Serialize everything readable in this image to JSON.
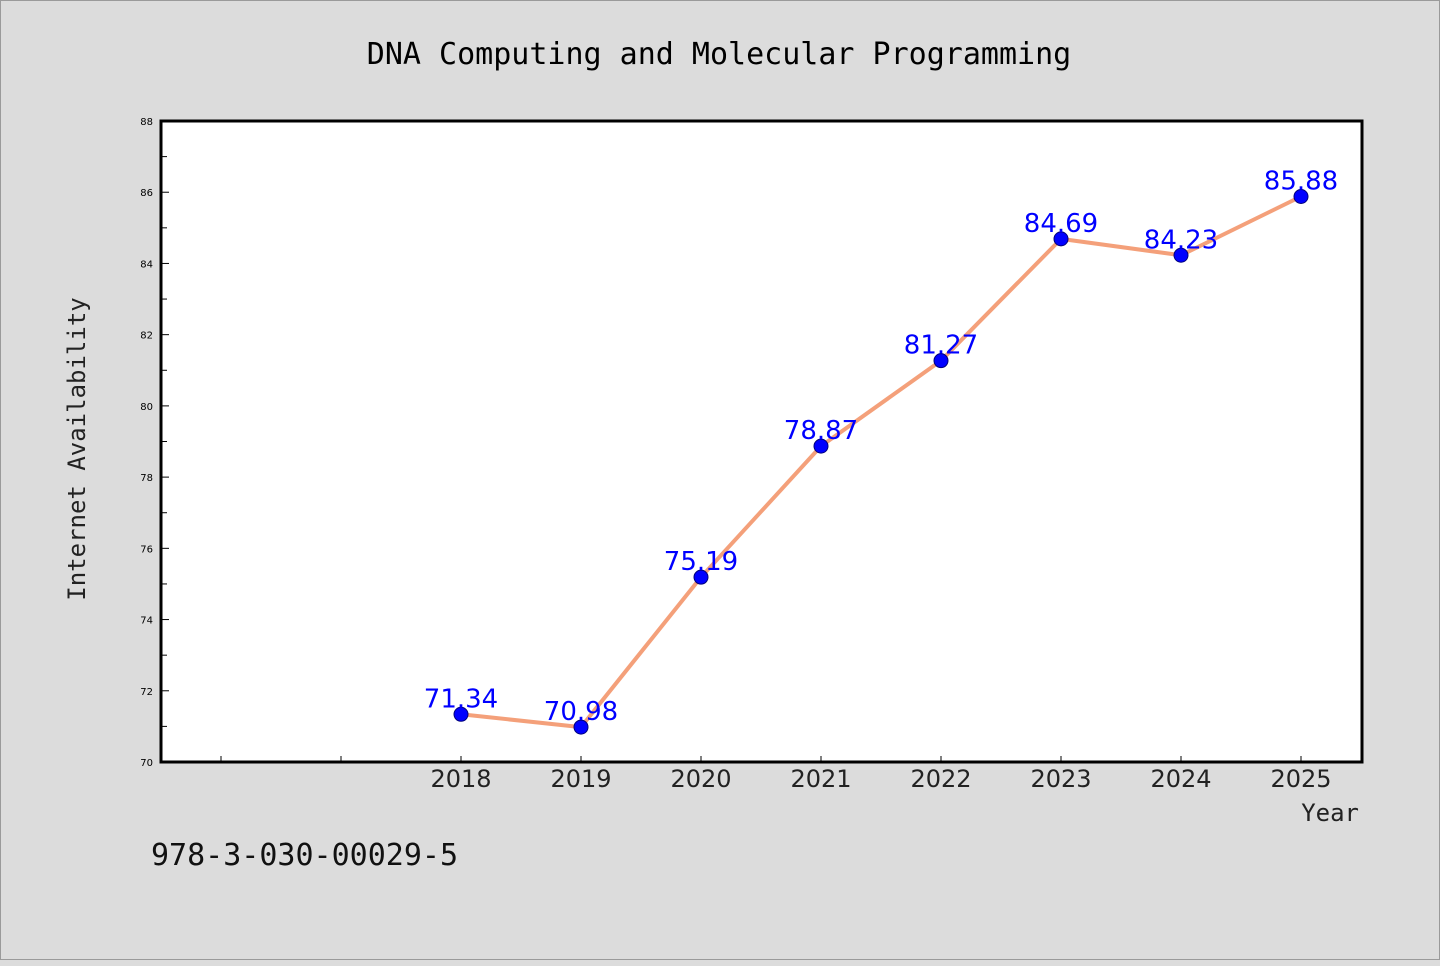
{
  "chart_data": {
    "type": "line",
    "title": "DNA Computing and Molecular Programming",
    "xlabel": "Year",
    "ylabel": "Internet Availability",
    "categories": [
      "2018",
      "2019",
      "2020",
      "2021",
      "2022",
      "2023",
      "2024",
      "2025"
    ],
    "series": [
      {
        "values": [
          71.34,
          70.98,
          75.19,
          78.87,
          81.27,
          84.69,
          84.23,
          85.88
        ],
        "data_labels": [
          "71.34",
          "70.98",
          "75.19",
          "78.87",
          "81.27",
          "84.69",
          "84.23",
          "85.88"
        ]
      }
    ],
    "ylim": [
      70,
      88
    ],
    "yticks": [
      "70",
      "72",
      "74",
      "76",
      "78",
      "80",
      "82",
      "84",
      "86",
      "88"
    ],
    "grid": false,
    "legend": "none",
    "colors": {
      "line": "#f4a07a",
      "marker": "#0000ff",
      "label": "#0000ff",
      "background": "#dcdcdc",
      "plot_background": "#ffffff"
    }
  },
  "footer": {
    "isbn": "978-3-030-00029-5"
  }
}
